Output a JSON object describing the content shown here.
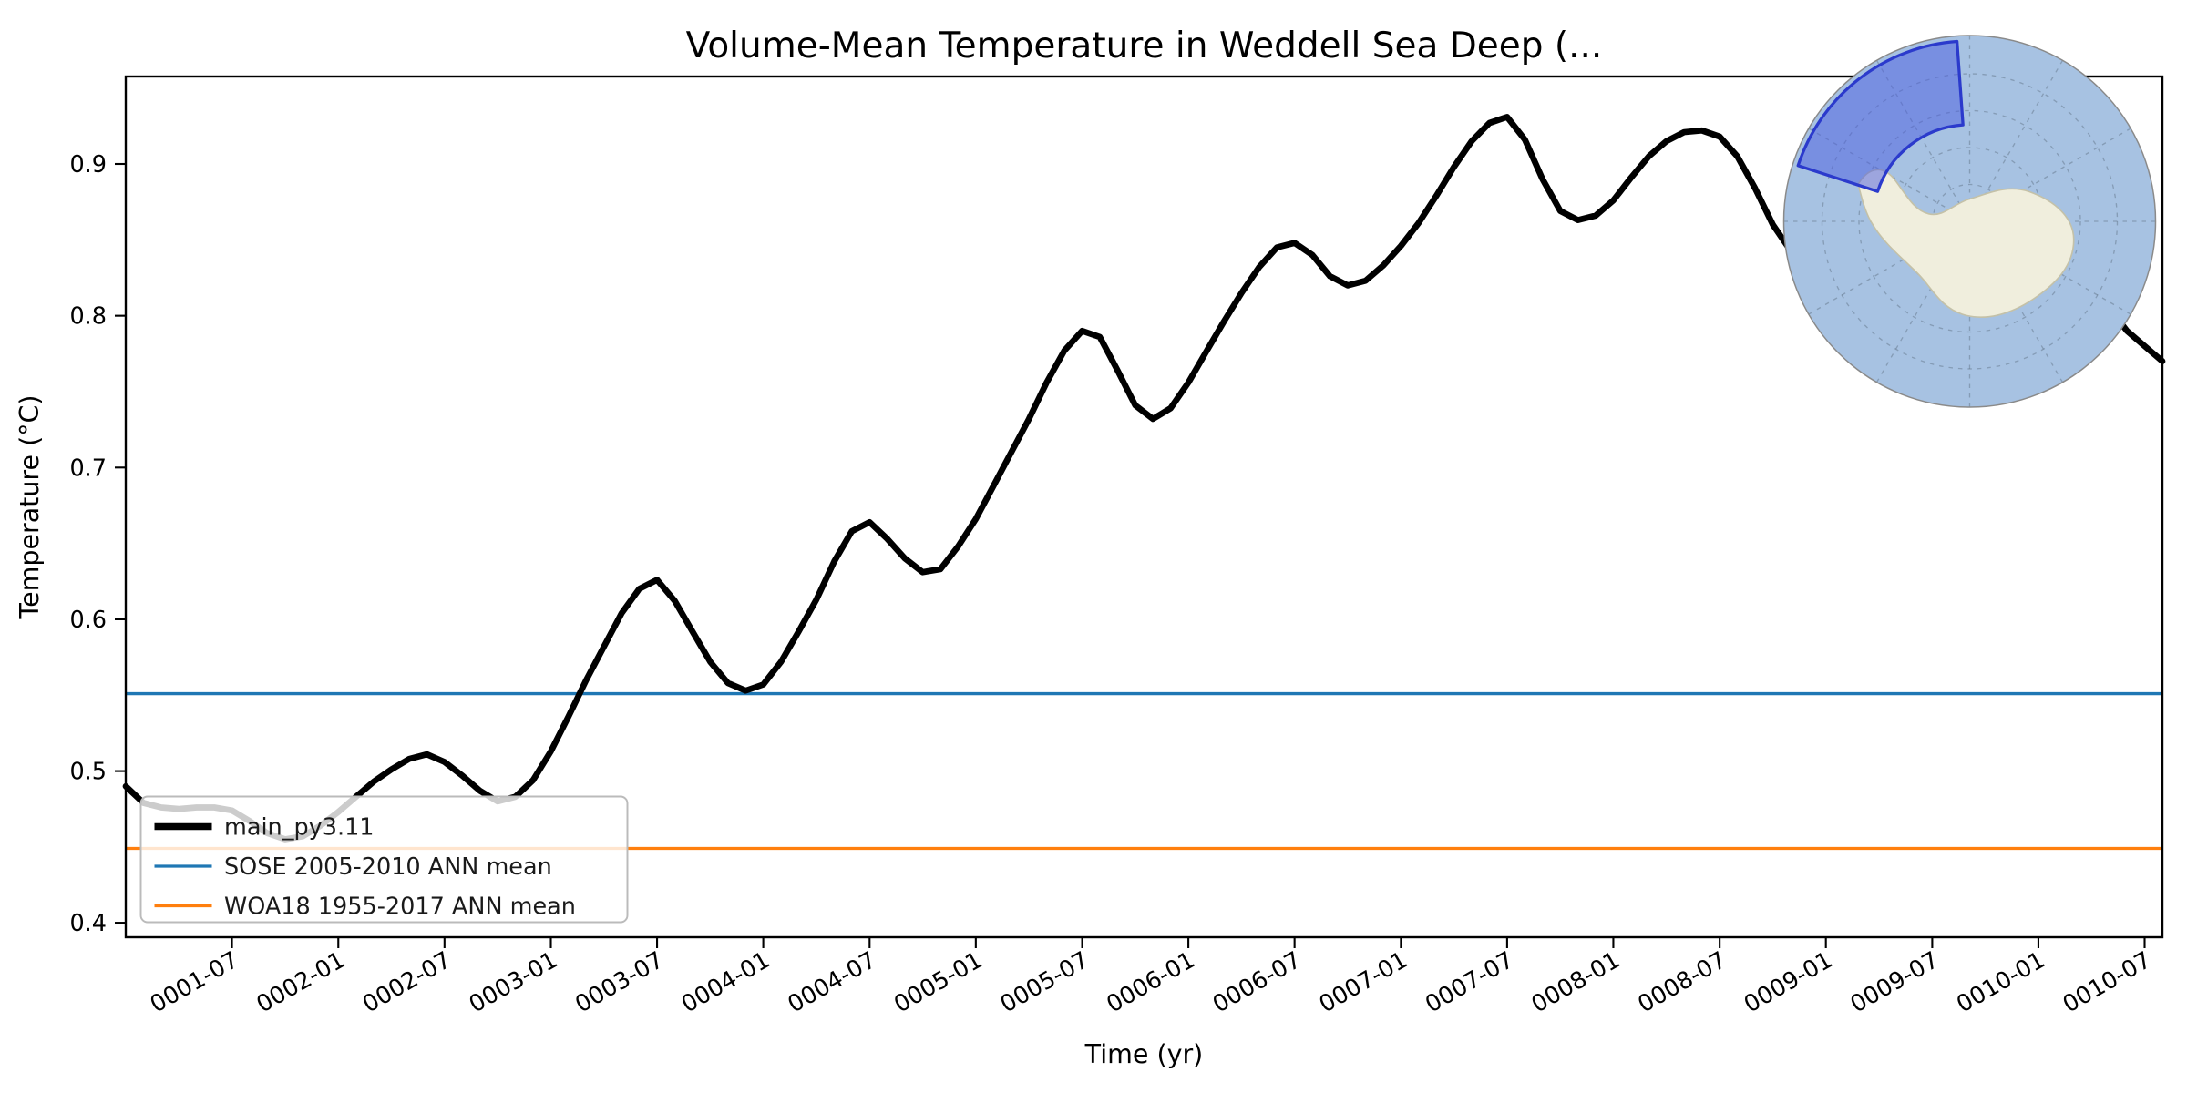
{
  "chart_data": {
    "type": "line",
    "title": "Volume-Mean Temperature in Weddell Sea Deep (...",
    "xlabel": "Time (yr)",
    "ylabel": "Temperature (°C)",
    "x_frequency": "monthly",
    "x_start": "0001-01",
    "x_end": "0010-08",
    "xtick_labels": [
      "0001-07",
      "0002-01",
      "0002-07",
      "0003-01",
      "0003-07",
      "0004-01",
      "0004-07",
      "0005-01",
      "0005-07",
      "0006-01",
      "0006-07",
      "0007-01",
      "0007-07",
      "0008-01",
      "0008-07",
      "0009-01",
      "0009-07",
      "0010-01",
      "0010-07"
    ],
    "xtick_month_indices": [
      6,
      12,
      18,
      24,
      30,
      36,
      42,
      48,
      54,
      60,
      66,
      72,
      78,
      84,
      90,
      96,
      102,
      108,
      114
    ],
    "yticks": [
      0.4,
      0.5,
      0.6,
      0.7,
      0.8,
      0.9
    ],
    "ylim": [
      0.3905,
      0.9576
    ],
    "grid": false,
    "series": [
      {
        "name": "main_py3.11",
        "color": "#000000",
        "linewidth": 4.5,
        "values": [
          0.49,
          0.479,
          0.476,
          0.475,
          0.476,
          0.476,
          0.474,
          0.467,
          0.459,
          0.455,
          0.457,
          0.464,
          0.473,
          0.483,
          0.493,
          0.501,
          0.508,
          0.511,
          0.506,
          0.497,
          0.487,
          0.48,
          0.483,
          0.494,
          0.513,
          0.536,
          0.56,
          0.582,
          0.604,
          0.62,
          0.626,
          0.612,
          0.592,
          0.572,
          0.558,
          0.553,
          0.557,
          0.572,
          0.592,
          0.613,
          0.638,
          0.658,
          0.664,
          0.653,
          0.64,
          0.631,
          0.633,
          0.648,
          0.666,
          0.688,
          0.71,
          0.732,
          0.756,
          0.777,
          0.79,
          0.786,
          0.764,
          0.741,
          0.732,
          0.739,
          0.756,
          0.776,
          0.796,
          0.815,
          0.832,
          0.845,
          0.848,
          0.84,
          0.826,
          0.82,
          0.823,
          0.833,
          0.846,
          0.861,
          0.879,
          0.898,
          0.915,
          0.927,
          0.931,
          0.916,
          0.89,
          0.869,
          0.863,
          0.866,
          0.876,
          0.891,
          0.905,
          0.915,
          0.921,
          0.922,
          0.918,
          0.905,
          0.884,
          0.86,
          0.843,
          0.836,
          0.835,
          0.842,
          0.856,
          0.872,
          0.886,
          0.894,
          0.897,
          0.89,
          0.876,
          0.862,
          0.855,
          0.857,
          0.86,
          0.858,
          0.845,
          0.825,
          0.805,
          0.79,
          0.78,
          0.77
        ]
      }
    ],
    "reference_lines": [
      {
        "name": "SOSE 2005-2010 ANN mean",
        "color": "#1f77b4",
        "value": 0.551
      },
      {
        "name": "WOA18 1955-2017 ANN mean",
        "color": "#ff7f0e",
        "value": 0.449
      }
    ],
    "legend": {
      "position": "lower left",
      "entries": [
        "main_py3.11",
        "SOSE 2005-2010 ANN mean",
        "WOA18 1955-2017 ANN mean"
      ]
    }
  },
  "inset_map": {
    "description": "South polar stereographic map with Weddell Sea Deep region highlighted",
    "ocean_color": "#a7c2e2",
    "land_color": "#f0eedd",
    "region_fill": "#4a5ce0",
    "region_edge": "#2b3acc"
  }
}
